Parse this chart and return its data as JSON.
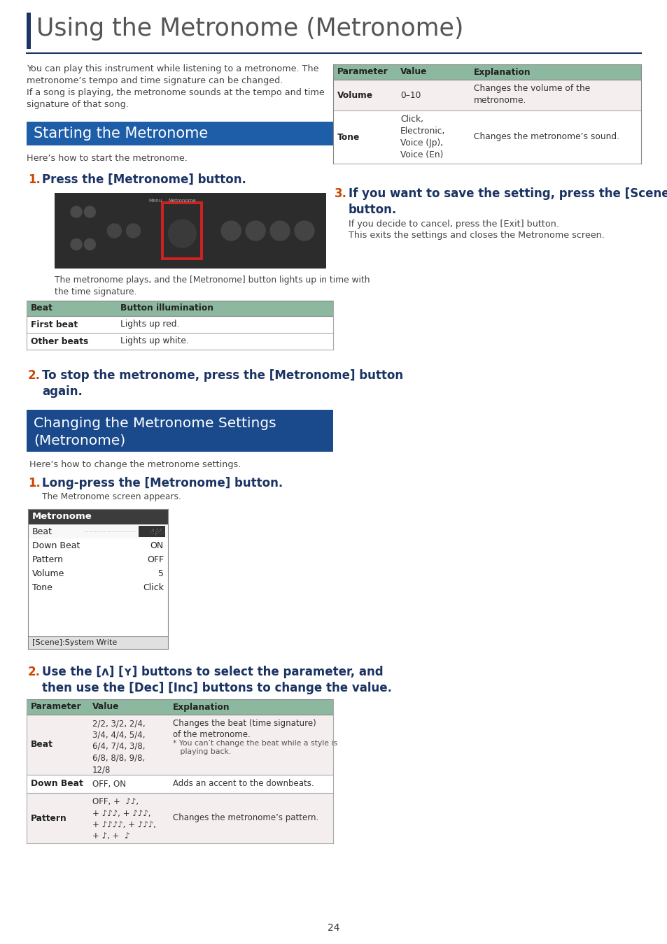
{
  "title": "Using the Metronome (Metronome)",
  "title_bar_color": "#1a3363",
  "title_text_color": "#555555",
  "section1_title": "Starting the Metronome",
  "section1_gradient_left": "#1e5da8",
  "section1_gradient_right": "#1e5da8",
  "section2_title_line1": "Changing the Metronome Settings",
  "section2_title_line2": "(Metronome)",
  "section2_color": "#1a4a8c",
  "intro_text1": "You can play this instrument while listening to a metronome. The\nmetronome’s tempo and time signature can be changed.",
  "intro_text2": "If a song is playing, the metronome sounds at the tempo and time\nsignature of that song.",
  "start_intro": "Here’s how to start the metronome.",
  "step1_note": "The metronome plays, and the [Metronome] button lights up in time with\nthe time signature.",
  "beat_table_header": [
    "Beat",
    "Button illumination"
  ],
  "beat_table_rows": [
    [
      "First beat",
      "Lights up red."
    ],
    [
      "Other beats",
      "Lights up white."
    ]
  ],
  "beat_table_header_bg": "#8db8a0",
  "param_table_header_bg": "#8db8a0",
  "step2_text_line1": "To stop the metronome, press the [Metronome] button",
  "step2_text_line2": "again.",
  "change_intro": "Here’s how to change the metronome settings.",
  "step3_text": "Long-press the [Metronome] button.",
  "step3_note": "The Metronome screen appears.",
  "metronome_screen_rows": [
    [
      "Beat",
      "4/4"
    ],
    [
      "Down Beat",
      "ON"
    ],
    [
      "Pattern",
      "OFF"
    ],
    [
      "Volume",
      "5"
    ],
    [
      "Tone",
      "Click"
    ]
  ],
  "metronome_screen_footer": "[Scene]:System Write",
  "step4_text_line1": "Use the [ʌ] [ʏ] buttons to select the parameter, and",
  "step4_text_line2": "then use the [Dec] [Inc] buttons to change the value.",
  "param_table_header": [
    "Parameter",
    "Value",
    "Explanation"
  ],
  "beat_row_value": "2/2, 3/2, 2/4,\n3/4, 4/4, 5/4,\n6/4, 7/4, 3/8,\n6/8, 8/8, 9/8,\n12/8",
  "beat_row_exp_line1": "Changes the beat (time signature)",
  "beat_row_exp_line2": "of the metronome.",
  "beat_row_exp_note": "* You can’t change the beat while a style is\n   playing back.",
  "downbeat_value": "OFF, ON",
  "downbeat_exp": "Adds an accent to the downbeats.",
  "pattern_value_line1": "OFF, +   ♪♪,",
  "pattern_value_line2": "+   ♪♪♪, +  ♪♪♪,",
  "pattern_value_line3": "+   ♪♪♪♪, +  ♪♪♪,",
  "pattern_value_line4": "+   ♪, +   ♪",
  "pattern_exp": "Changes the metronome’s pattern.",
  "right_table_header": [
    "Parameter",
    "Value",
    "Explanation"
  ],
  "volume_value": "0–10",
  "volume_exp_line1": "Changes the volume of the",
  "volume_exp_line2": "metronome.",
  "tone_value_line1": "Click,",
  "tone_value_line2": "Electronic,",
  "tone_value_line3": "Voice (Jp),",
  "tone_value_line4": "Voice (En)",
  "tone_exp": "Changes the metronome’s sound.",
  "step5_text_line1": "If you want to save the setting, press the [Scene]",
  "step5_text_line2": "button.",
  "step5_note1": "If you decide to cancel, press the [Exit] button.",
  "step5_note2": "This exits the settings and closes the Metronome screen.",
  "page_number": "24",
  "orange_color": "#cc4400",
  "blue_color": "#1a3363",
  "table_row_bg": "#f5eeee",
  "text_color": "#444444",
  "small_text_color": "#555555",
  "table_line_color": "#aaaaaa",
  "bg_color": "#ffffff"
}
